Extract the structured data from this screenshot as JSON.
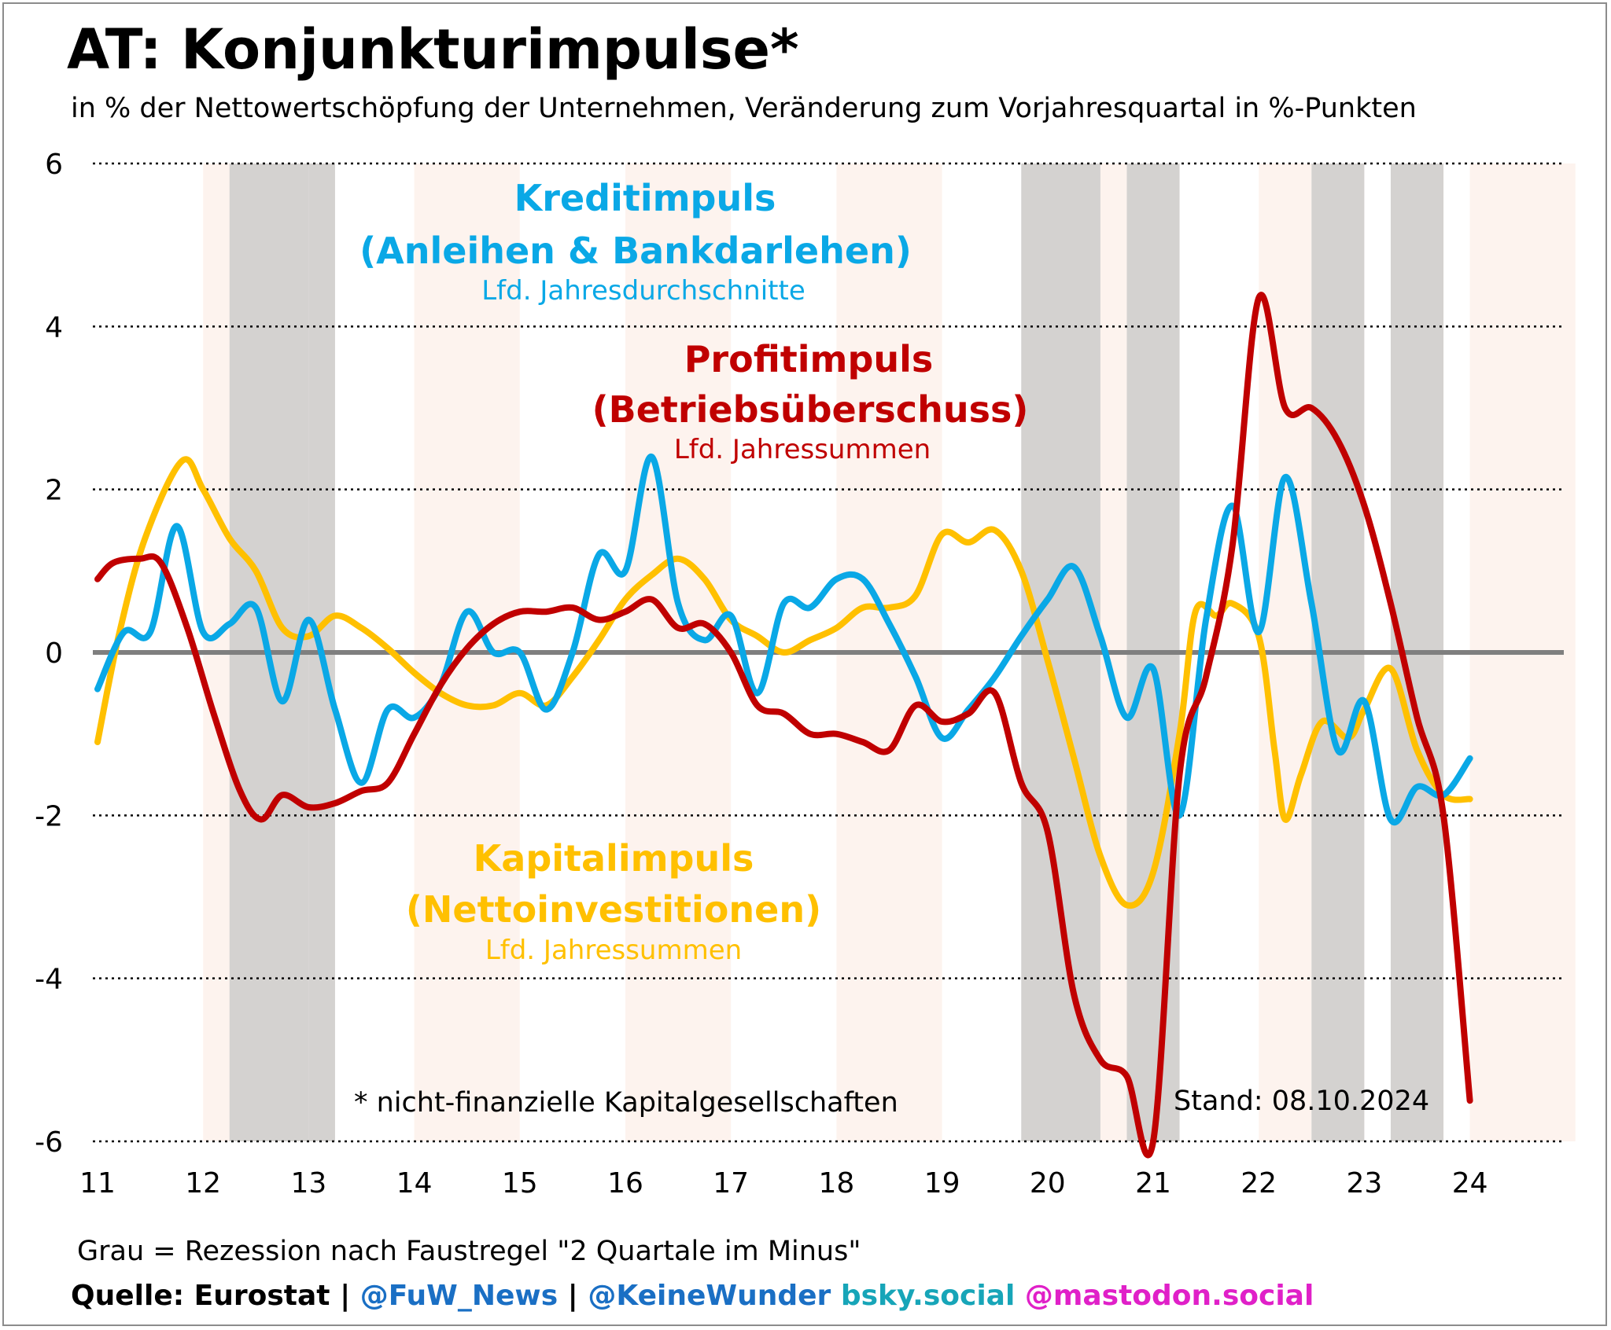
{
  "title": "AT: Konjunkturimpulse*",
  "subtitle": "in % der Nettowertschöpfung der Unternehmen, Veränderung zum Vorjahresquartal in %-Punkten",
  "footnote": "* nicht-finanzielle Kapitalgesellschaften",
  "stand": "Stand: 08.10.2024",
  "recession_note": "Grau = Rezession nach Faustregel \"2 Quartale im Minus\"",
  "footer": {
    "source": "Quelle: Eurostat",
    "sep1": " | ",
    "handle1": "@FuW_News",
    "sep2": " | ",
    "handle2": "@KeineWunder",
    "handle3": " bsky.social",
    "handle4": " @mastodon.social",
    "colors": {
      "source": "#000000",
      "handle1": "#1a6fc4",
      "handle2": "#1a6fc4",
      "handle3": "#17a5b8",
      "handle4": "#e020c8"
    }
  },
  "annotations": {
    "kredit": {
      "line1": "Kreditimpuls",
      "line2": "(Anleihen & Bankdarlehen)",
      "line3": "Lfd. Jahresdurchschnitte",
      "color": "#0aa8e6"
    },
    "profit": {
      "line1": "Profitimpuls",
      "line2": "(Betriebsüberschuss)",
      "line3": "Lfd. Jahressummen",
      "color": "#c00000"
    },
    "kapital": {
      "line1": "Kapitalimpuls",
      "line2": "(Nettoinvestitionen)",
      "line3": "Lfd. Jahressummen",
      "color": "#ffc000"
    }
  },
  "chart_data": {
    "type": "line",
    "title": "AT: Konjunkturimpulse*",
    "ylim": [
      -6,
      6
    ],
    "yticks": [
      6,
      4,
      2,
      0,
      -2,
      -4,
      -6
    ],
    "ytick_labels": [
      "6",
      "4",
      "2",
      "0",
      "-2",
      "-4",
      "-6"
    ],
    "xlim": [
      2011,
      2025
    ],
    "xticks": [
      2011,
      2012,
      2013,
      2014,
      2015,
      2016,
      2017,
      2018,
      2019,
      2020,
      2021,
      2022,
      2023,
      2024
    ],
    "xtick_labels": [
      "11",
      "12",
      "13",
      "14",
      "15",
      "16",
      "17",
      "18",
      "19",
      "20",
      "21",
      "22",
      "23",
      "24"
    ],
    "grid": "horizontal dotted",
    "zero_line": true,
    "shaded_bands": {
      "recession_color": "#d4d2d0",
      "light_color": "#fdf3ee",
      "recession": [
        [
          2012.25,
          2013.0
        ],
        [
          2013.0,
          2013.25
        ],
        [
          2019.75,
          2020.5
        ],
        [
          2020.75,
          2021.25
        ],
        [
          2022.5,
          2023.0
        ],
        [
          2023.25,
          2023.75
        ]
      ],
      "light": [
        [
          2012.0,
          2012.25
        ],
        [
          2014.0,
          2015.0
        ],
        [
          2016.0,
          2017.0
        ],
        [
          2018.0,
          2019.0
        ],
        [
          2020.5,
          2020.75
        ],
        [
          2022.0,
          2022.5
        ],
        [
          2024.0,
          2025.0
        ]
      ]
    },
    "series": [
      {
        "name": "Kapitalimpuls",
        "color": "#ffc000",
        "points": [
          [
            2011.0,
            -1.1
          ],
          [
            2011.2,
            0.2
          ],
          [
            2011.45,
            1.4
          ],
          [
            2011.8,
            2.35
          ],
          [
            2012.0,
            2.0
          ],
          [
            2012.25,
            1.4
          ],
          [
            2012.5,
            1.0
          ],
          [
            2012.75,
            0.3
          ],
          [
            2013.0,
            0.2
          ],
          [
            2013.25,
            0.45
          ],
          [
            2013.5,
            0.3
          ],
          [
            2013.75,
            0.05
          ],
          [
            2014.0,
            -0.25
          ],
          [
            2014.25,
            -0.5
          ],
          [
            2014.5,
            -0.65
          ],
          [
            2014.75,
            -0.65
          ],
          [
            2015.0,
            -0.5
          ],
          [
            2015.25,
            -0.65
          ],
          [
            2015.5,
            -0.3
          ],
          [
            2015.75,
            0.15
          ],
          [
            2016.0,
            0.65
          ],
          [
            2016.25,
            0.95
          ],
          [
            2016.5,
            1.15
          ],
          [
            2016.75,
            0.9
          ],
          [
            2017.0,
            0.4
          ],
          [
            2017.25,
            0.2
          ],
          [
            2017.5,
            0.0
          ],
          [
            2017.75,
            0.15
          ],
          [
            2018.0,
            0.3
          ],
          [
            2018.25,
            0.55
          ],
          [
            2018.5,
            0.55
          ],
          [
            2018.75,
            0.7
          ],
          [
            2019.0,
            1.45
          ],
          [
            2019.25,
            1.35
          ],
          [
            2019.5,
            1.5
          ],
          [
            2019.75,
            1.0
          ],
          [
            2020.0,
            -0.1
          ],
          [
            2020.25,
            -1.3
          ],
          [
            2020.5,
            -2.5
          ],
          [
            2020.75,
            -3.1
          ],
          [
            2021.0,
            -2.7
          ],
          [
            2021.25,
            -1.0
          ],
          [
            2021.4,
            0.5
          ],
          [
            2021.6,
            0.45
          ],
          [
            2021.75,
            0.6
          ],
          [
            2022.0,
            0.2
          ],
          [
            2022.15,
            -1.2
          ],
          [
            2022.25,
            -2.05
          ],
          [
            2022.4,
            -1.5
          ],
          [
            2022.6,
            -0.85
          ],
          [
            2022.85,
            -1.05
          ],
          [
            2023.0,
            -0.7
          ],
          [
            2023.25,
            -0.2
          ],
          [
            2023.5,
            -1.2
          ],
          [
            2023.75,
            -1.75
          ],
          [
            2024.0,
            -1.8
          ]
        ]
      },
      {
        "name": "Kreditimpuls",
        "color": "#0aa8e6",
        "points": [
          [
            2011.0,
            -0.45
          ],
          [
            2011.25,
            0.25
          ],
          [
            2011.5,
            0.25
          ],
          [
            2011.75,
            1.55
          ],
          [
            2012.0,
            0.25
          ],
          [
            2012.25,
            0.35
          ],
          [
            2012.5,
            0.55
          ],
          [
            2012.75,
            -0.6
          ],
          [
            2013.0,
            0.4
          ],
          [
            2013.25,
            -0.7
          ],
          [
            2013.5,
            -1.6
          ],
          [
            2013.75,
            -0.7
          ],
          [
            2014.0,
            -0.8
          ],
          [
            2014.25,
            -0.4
          ],
          [
            2014.5,
            0.5
          ],
          [
            2014.75,
            0.0
          ],
          [
            2015.0,
            0.0
          ],
          [
            2015.25,
            -0.7
          ],
          [
            2015.5,
            0.0
          ],
          [
            2015.75,
            1.2
          ],
          [
            2016.0,
            1.0
          ],
          [
            2016.25,
            2.4
          ],
          [
            2016.5,
            0.6
          ],
          [
            2016.75,
            0.15
          ],
          [
            2017.0,
            0.45
          ],
          [
            2017.25,
            -0.5
          ],
          [
            2017.5,
            0.6
          ],
          [
            2017.75,
            0.55
          ],
          [
            2018.0,
            0.9
          ],
          [
            2018.25,
            0.9
          ],
          [
            2018.5,
            0.35
          ],
          [
            2018.75,
            -0.3
          ],
          [
            2019.0,
            -1.05
          ],
          [
            2019.25,
            -0.7
          ],
          [
            2019.5,
            -0.3
          ],
          [
            2019.75,
            0.2
          ],
          [
            2020.0,
            0.65
          ],
          [
            2020.25,
            1.05
          ],
          [
            2020.5,
            0.2
          ],
          [
            2020.75,
            -0.8
          ],
          [
            2021.0,
            -0.2
          ],
          [
            2021.25,
            -2.0
          ],
          [
            2021.5,
            0.4
          ],
          [
            2021.75,
            1.8
          ],
          [
            2022.0,
            0.25
          ],
          [
            2022.25,
            2.15
          ],
          [
            2022.5,
            0.6
          ],
          [
            2022.75,
            -1.2
          ],
          [
            2023.0,
            -0.6
          ],
          [
            2023.25,
            -2.05
          ],
          [
            2023.5,
            -1.65
          ],
          [
            2023.75,
            -1.75
          ],
          [
            2024.0,
            -1.3
          ]
        ]
      },
      {
        "name": "Profitimpuls",
        "color": "#c00000",
        "points": [
          [
            2011.0,
            0.9
          ],
          [
            2011.15,
            1.1
          ],
          [
            2011.4,
            1.15
          ],
          [
            2011.6,
            1.1
          ],
          [
            2011.85,
            0.3
          ],
          [
            2012.1,
            -0.75
          ],
          [
            2012.35,
            -1.7
          ],
          [
            2012.55,
            -2.05
          ],
          [
            2012.75,
            -1.75
          ],
          [
            2013.0,
            -1.9
          ],
          [
            2013.25,
            -1.85
          ],
          [
            2013.5,
            -1.7
          ],
          [
            2013.75,
            -1.6
          ],
          [
            2014.0,
            -1.0
          ],
          [
            2014.25,
            -0.4
          ],
          [
            2014.5,
            0.05
          ],
          [
            2014.75,
            0.35
          ],
          [
            2015.0,
            0.5
          ],
          [
            2015.25,
            0.5
          ],
          [
            2015.5,
            0.55
          ],
          [
            2015.75,
            0.4
          ],
          [
            2016.0,
            0.5
          ],
          [
            2016.25,
            0.65
          ],
          [
            2016.5,
            0.3
          ],
          [
            2016.75,
            0.35
          ],
          [
            2017.0,
            0.0
          ],
          [
            2017.25,
            -0.65
          ],
          [
            2017.5,
            -0.75
          ],
          [
            2017.75,
            -1.0
          ],
          [
            2018.0,
            -1.0
          ],
          [
            2018.25,
            -1.1
          ],
          [
            2018.5,
            -1.2
          ],
          [
            2018.75,
            -0.65
          ],
          [
            2019.0,
            -0.85
          ],
          [
            2019.25,
            -0.75
          ],
          [
            2019.5,
            -0.5
          ],
          [
            2019.75,
            -1.6
          ],
          [
            2020.0,
            -2.2
          ],
          [
            2020.25,
            -4.2
          ],
          [
            2020.5,
            -5.0
          ],
          [
            2020.75,
            -5.2
          ],
          [
            2021.0,
            -6.0
          ],
          [
            2021.25,
            -1.5
          ],
          [
            2021.5,
            -0.3
          ],
          [
            2021.75,
            1.3
          ],
          [
            2022.0,
            4.35
          ],
          [
            2022.25,
            3.0
          ],
          [
            2022.5,
            3.0
          ],
          [
            2022.75,
            2.6
          ],
          [
            2023.0,
            1.8
          ],
          [
            2023.25,
            0.6
          ],
          [
            2023.5,
            -0.8
          ],
          [
            2023.75,
            -2.0
          ],
          [
            2024.0,
            -5.5
          ]
        ]
      }
    ]
  }
}
